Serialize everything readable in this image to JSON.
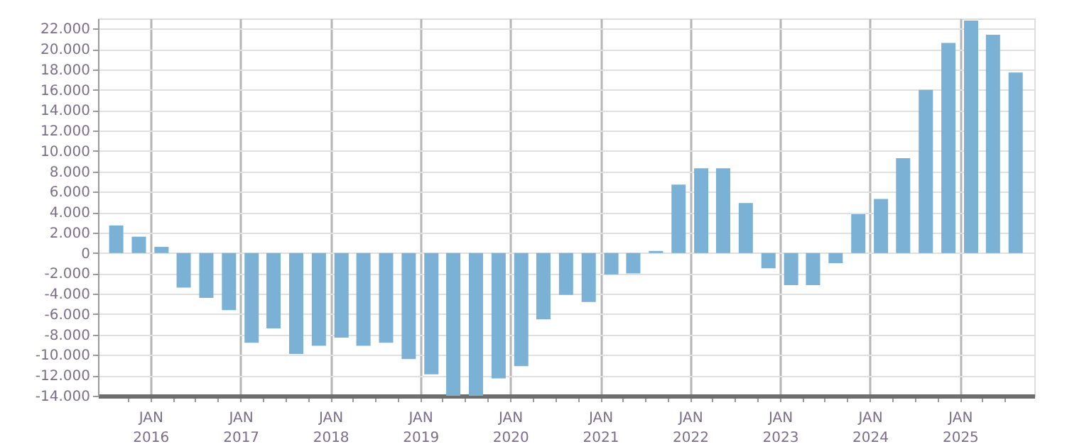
{
  "chart_data": {
    "type": "bar",
    "color": "#7ab1d4",
    "grid": true,
    "x": [
      "2015-08-15",
      "2015-11-15",
      "2016-02-15",
      "2016-05-15",
      "2016-08-15",
      "2016-11-15",
      "2017-02-15",
      "2017-05-15",
      "2017-08-15",
      "2017-11-15",
      "2018-02-15",
      "2018-05-15",
      "2018-08-15",
      "2018-11-15",
      "2019-02-15",
      "2019-05-15",
      "2019-08-15",
      "2019-11-15",
      "2020-02-15",
      "2020-05-15",
      "2020-08-15",
      "2020-11-15",
      "2021-02-15",
      "2021-05-15",
      "2021-08-15",
      "2021-11-15",
      "2022-02-15",
      "2022-05-15",
      "2022-08-15",
      "2022-11-15",
      "2023-02-15",
      "2023-05-15",
      "2023-08-15",
      "2023-11-15",
      "2024-02-15",
      "2024-05-15",
      "2024-08-15",
      "2024-11-15",
      "2025-02-15",
      "2025-05-15",
      "2025-08-15"
    ],
    "values": [
      2700,
      1600,
      600,
      -3400,
      -4400,
      -5600,
      -8800,
      -7400,
      -9900,
      -9100,
      -8300,
      -9100,
      -8800,
      -10400,
      -11900,
      -14000,
      -14000,
      -12300,
      -11100,
      -6500,
      -4100,
      -4800,
      -2100,
      -2000,
      200,
      6700,
      8300,
      8300,
      4900,
      -1500,
      -3150,
      -3150,
      -1000,
      3800,
      5300,
      9300,
      16000,
      20600,
      22800,
      21400,
      17700
    ],
    "xlim": [
      "2015-07",
      "2025-10"
    ],
    "xticks": [
      {
        "value": "2015-10",
        "label": null
      },
      {
        "value": "2016-01",
        "label": "JAN 2016"
      },
      {
        "value": "2016-04",
        "label": null
      },
      {
        "value": "2016-07",
        "label": null
      },
      {
        "value": "2016-10",
        "label": null
      },
      {
        "value": "2017-01",
        "label": "JAN 2017"
      },
      {
        "value": "2017-04",
        "label": null
      },
      {
        "value": "2017-07",
        "label": null
      },
      {
        "value": "2017-10",
        "label": null
      },
      {
        "value": "2018-01",
        "label": "JAN 2018"
      },
      {
        "value": "2018-04",
        "label": null
      },
      {
        "value": "2018-07",
        "label": null
      },
      {
        "value": "2018-10",
        "label": null
      },
      {
        "value": "2019-01",
        "label": "JAN 2019"
      },
      {
        "value": "2019-04",
        "label": null
      },
      {
        "value": "2019-07",
        "label": null
      },
      {
        "value": "2019-10",
        "label": null
      },
      {
        "value": "2020-01",
        "label": "JAN 2020"
      },
      {
        "value": "2020-04",
        "label": null
      },
      {
        "value": "2020-07",
        "label": null
      },
      {
        "value": "2020-10",
        "label": null
      },
      {
        "value": "2021-01",
        "label": "JAN 2021"
      },
      {
        "value": "2021-04",
        "label": null
      },
      {
        "value": "2021-07",
        "label": null
      },
      {
        "value": "2021-10",
        "label": null
      },
      {
        "value": "2022-01",
        "label": "JAN 2022"
      },
      {
        "value": "2022-04",
        "label": null
      },
      {
        "value": "2022-07",
        "label": null
      },
      {
        "value": "2022-10",
        "label": null
      },
      {
        "value": "2023-01",
        "label": "JAN 2023"
      },
      {
        "value": "2023-04",
        "label": null
      },
      {
        "value": "2023-07",
        "label": null
      },
      {
        "value": "2023-10",
        "label": null
      },
      {
        "value": "2024-01",
        "label": "JAN 2024"
      },
      {
        "value": "2024-04",
        "label": null
      },
      {
        "value": "2024-07",
        "label": null
      },
      {
        "value": "2024-10",
        "label": null
      },
      {
        "value": "2025-01",
        "label": "JAN 2025"
      },
      {
        "value": "2025-04",
        "label": null
      },
      {
        "value": "2025-07",
        "label": null
      }
    ],
    "ylim": [
      -14000,
      23000
    ],
    "yticks": [
      {
        "value": -14000,
        "label": "-14.000"
      },
      {
        "value": -12000,
        "label": "-12.000"
      },
      {
        "value": -10000,
        "label": "-10.000"
      },
      {
        "value": -8000,
        "label": "-8.000"
      },
      {
        "value": -6000,
        "label": "-6.000"
      },
      {
        "value": -4000,
        "label": "-4.000"
      },
      {
        "value": -2000,
        "label": "-2.000"
      },
      {
        "value": 0,
        "label": "0"
      },
      {
        "value": 2000,
        "label": "2.000"
      },
      {
        "value": 4000,
        "label": "4.000"
      },
      {
        "value": 6000,
        "label": "6.000"
      },
      {
        "value": 8000,
        "label": "8.000"
      },
      {
        "value": 10000,
        "label": "10.000"
      },
      {
        "value": 12000,
        "label": "12.000"
      },
      {
        "value": 14000,
        "label": "14.000"
      },
      {
        "value": 16000,
        "label": "16.000"
      },
      {
        "value": 18000,
        "label": "18.000"
      },
      {
        "value": 20000,
        "label": "20.000"
      },
      {
        "value": 22000,
        "label": "22.000"
      }
    ]
  }
}
